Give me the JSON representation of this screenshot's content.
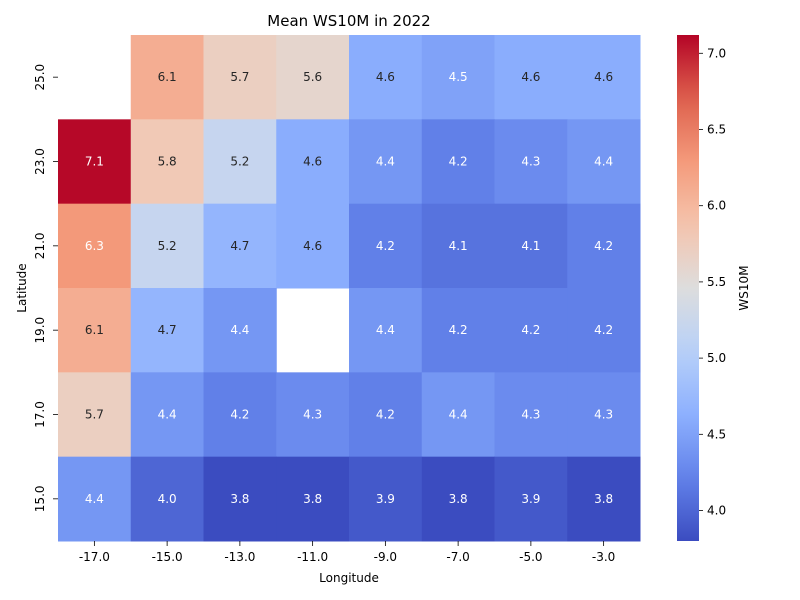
{
  "chart_data": {
    "type": "heatmap",
    "title": "Mean WS10M in 2022",
    "xlabel": "Longitude",
    "ylabel": "Latitude",
    "x_categories": [
      "-17.0",
      "-15.0",
      "-13.0",
      "-11.0",
      "-9.0",
      "-7.0",
      "-5.0",
      "-3.0"
    ],
    "y_categories": [
      "25.0",
      "23.0",
      "21.0",
      "19.0",
      "17.0",
      "15.0"
    ],
    "values": [
      [
        null,
        6.1,
        5.7,
        5.6,
        4.6,
        4.5,
        4.6,
        4.6
      ],
      [
        7.1,
        5.8,
        5.2,
        4.6,
        4.4,
        4.2,
        4.3,
        4.4
      ],
      [
        6.3,
        5.2,
        4.7,
        4.6,
        4.2,
        4.1,
        4.1,
        4.2
      ],
      [
        6.1,
        4.7,
        4.4,
        null,
        4.4,
        4.2,
        4.2,
        4.2
      ],
      [
        5.7,
        4.4,
        4.2,
        4.3,
        4.2,
        4.4,
        4.3,
        4.3
      ],
      [
        4.4,
        4.0,
        3.8,
        3.8,
        3.9,
        3.8,
        3.9,
        3.8
      ]
    ],
    "colorbar": {
      "label": "WS10M",
      "range": [
        3.8,
        7.12
      ],
      "ticks": [
        "4.0",
        "4.5",
        "5.0",
        "5.5",
        "6.0",
        "6.5",
        "7.0"
      ],
      "colormap": "coolwarm"
    },
    "grid": false
  }
}
